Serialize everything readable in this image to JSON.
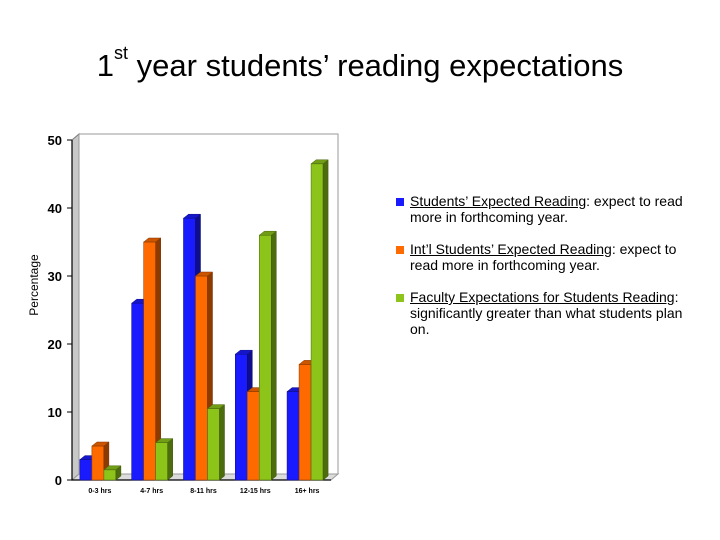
{
  "title": {
    "prefix": "1",
    "sup": "st",
    "rest": " year students’ reading expectations"
  },
  "chart_data": {
    "type": "bar",
    "ylabel": "Percentage",
    "ylim": [
      0,
      50
    ],
    "yticks": [
      "0",
      "10",
      "20",
      "30",
      "40",
      "50"
    ],
    "categories": [
      "0-3 hrs",
      "4-7 hrs",
      "8-11 hrs",
      "12-15 hrs",
      "16+ hrs"
    ],
    "grid": false,
    "three_d": true,
    "series": [
      {
        "color": "#1a1aff",
        "values": [
          3,
          26,
          38.5,
          18.5,
          13
        ]
      },
      {
        "color": "#ff6a00",
        "values": [
          5,
          35,
          30,
          13,
          17
        ]
      },
      {
        "color": "#8cc41a",
        "values": [
          1.5,
          5.5,
          10.5,
          36,
          46.5
        ]
      }
    ]
  },
  "legend": [
    {
      "color": "#1a1aff",
      "lead": "Students’ Expected Reading",
      "tail": ": expect to read more in forthcoming year."
    },
    {
      "color": "#ff6a00",
      "lead": "Int’l Students’ Expected Reading",
      "tail": ": expect to read more in forthcoming year."
    },
    {
      "color": "#8cc41a",
      "lead": "Faculty Expectations for Students Reading",
      "tail": ":  significantly greater than what students plan on."
    }
  ]
}
